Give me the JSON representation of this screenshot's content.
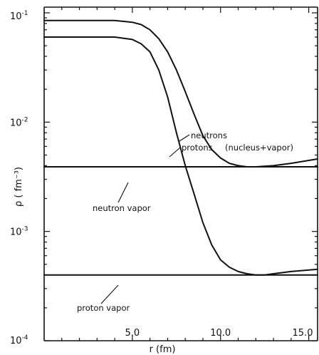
{
  "chart_data": {
    "type": "line",
    "xlabel": "r (fm)",
    "ylabel": "ρ ( fm⁻³)",
    "xlim": [
      0,
      15.5
    ],
    "ylim": [
      0.0001,
      0.1
    ],
    "yscale": "log",
    "x_ticks": [
      {
        "value": 5,
        "label": "5.0"
      },
      {
        "value": 10,
        "label": "10.0"
      },
      {
        "value": 15,
        "label": "15.0"
      }
    ],
    "y_ticks": [
      {
        "value": 0.1,
        "base": "10",
        "exp": "-1"
      },
      {
        "value": 0.01,
        "base": "10",
        "exp": "-2"
      },
      {
        "value": 0.001,
        "base": "10",
        "exp": "-3"
      },
      {
        "value": 0.0001,
        "base": "10",
        "exp": "-4"
      }
    ],
    "series": [
      {
        "name": "neutrons (nucleus+vapor)",
        "x": [
          0,
          4,
          5,
          5.5,
          6,
          6.5,
          7,
          7.5,
          8,
          8.5,
          9,
          9.5,
          10,
          10.5,
          11,
          11.5,
          12,
          13,
          14,
          15.5
        ],
        "y": [
          0.085,
          0.085,
          0.082,
          0.078,
          0.07,
          0.058,
          0.044,
          0.03,
          0.019,
          0.0118,
          0.0075,
          0.0056,
          0.0047,
          0.0042,
          0.004,
          0.0039,
          0.0039,
          0.004,
          0.0042,
          0.0046
        ]
      },
      {
        "name": "protons (nucleus+vapor)",
        "x": [
          0,
          4,
          5,
          5.5,
          6,
          6.5,
          7,
          7.5,
          8,
          8.5,
          9,
          9.5,
          10,
          10.5,
          11,
          11.5,
          12,
          12.5,
          13,
          14,
          15.5
        ],
        "y": [
          0.06,
          0.06,
          0.057,
          0.052,
          0.044,
          0.03,
          0.017,
          0.008,
          0.004,
          0.0022,
          0.0012,
          0.00075,
          0.00055,
          0.00047,
          0.00043,
          0.00041,
          0.0004,
          0.0004,
          0.00041,
          0.00043,
          0.00045
        ]
      },
      {
        "name": "neutron vapor",
        "x": [
          0,
          15.5
        ],
        "y": [
          0.0039,
          0.0039
        ]
      },
      {
        "name": "proton vapor",
        "x": [
          0,
          15.5
        ],
        "y": [
          0.0004,
          0.0004
        ]
      }
    ],
    "annotations": {
      "neutrons": "neutrons",
      "protons": "protons",
      "nucleus_vapor": "(nucleus+vapor)",
      "neutron_vapor": "neutron vapor",
      "proton_vapor": "proton vapor"
    },
    "grid": false,
    "legend": "none"
  }
}
